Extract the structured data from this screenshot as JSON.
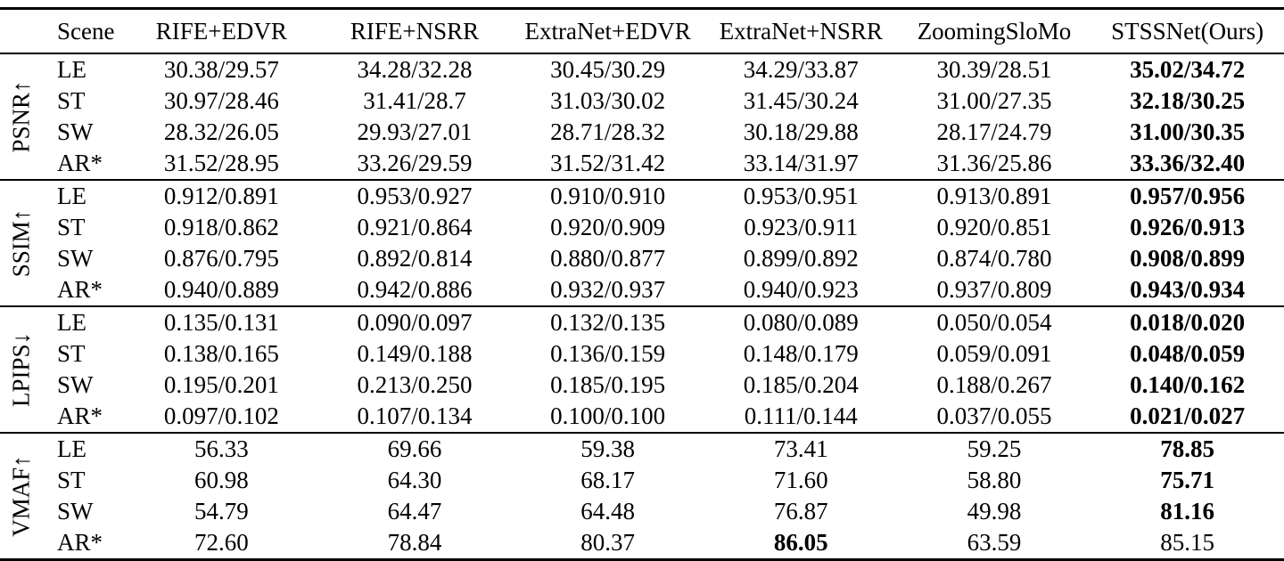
{
  "table": {
    "columns": [
      "Scene",
      "RIFE+EDVR",
      "RIFE+NSRR",
      "ExtraNet+EDVR",
      "ExtraNet+NSRR",
      "ZoomingSloMo",
      "STSSNet(Ours)"
    ],
    "groups": [
      {
        "metric": "PSNR↑",
        "rows": [
          {
            "scene": "LE",
            "values": [
              "30.38/29.57",
              "34.28/32.28",
              "30.45/30.29",
              "34.29/33.87",
              "30.39/28.51",
              "35.02/34.72"
            ],
            "bold": [
              5
            ]
          },
          {
            "scene": "ST",
            "values": [
              "30.97/28.46",
              "31.41/28.7",
              "31.03/30.02",
              "31.45/30.24",
              "31.00/27.35",
              "32.18/30.25"
            ],
            "bold": [
              5
            ]
          },
          {
            "scene": "SW",
            "values": [
              "28.32/26.05",
              "29.93/27.01",
              "28.71/28.32",
              "30.18/29.88",
              "28.17/24.79",
              "31.00/30.35"
            ],
            "bold": [
              5
            ]
          },
          {
            "scene": "AR*",
            "values": [
              "31.52/28.95",
              "33.26/29.59",
              "31.52/31.42",
              "33.14/31.97",
              "31.36/25.86",
              "33.36/32.40"
            ],
            "bold": [
              5
            ]
          }
        ]
      },
      {
        "metric": "SSIM↑",
        "rows": [
          {
            "scene": "LE",
            "values": [
              "0.912/0.891",
              "0.953/0.927",
              "0.910/0.910",
              "0.953/0.951",
              "0.913/0.891",
              "0.957/0.956"
            ],
            "bold": [
              5
            ]
          },
          {
            "scene": "ST",
            "values": [
              "0.918/0.862",
              "0.921/0.864",
              "0.920/0.909",
              "0.923/0.911",
              "0.920/0.851",
              "0.926/0.913"
            ],
            "bold": [
              5
            ]
          },
          {
            "scene": "SW",
            "values": [
              "0.876/0.795",
              "0.892/0.814",
              "0.880/0.877",
              "0.899/0.892",
              "0.874/0.780",
              "0.908/0.899"
            ],
            "bold": [
              5
            ]
          },
          {
            "scene": "AR*",
            "values": [
              "0.940/0.889",
              "0.942/0.886",
              "0.932/0.937",
              "0.940/0.923",
              "0.937/0.809",
              "0.943/0.934"
            ],
            "bold": [
              5
            ]
          }
        ]
      },
      {
        "metric": "LPIPS↓",
        "rows": [
          {
            "scene": "LE",
            "values": [
              "0.135/0.131",
              "0.090/0.097",
              "0.132/0.135",
              "0.080/0.089",
              "0.050/0.054",
              "0.018/0.020"
            ],
            "bold": [
              5
            ]
          },
          {
            "scene": "ST",
            "values": [
              "0.138/0.165",
              "0.149/0.188",
              "0.136/0.159",
              "0.148/0.179",
              "0.059/0.091",
              "0.048/0.059"
            ],
            "bold": [
              5
            ]
          },
          {
            "scene": "SW",
            "values": [
              "0.195/0.201",
              "0.213/0.250",
              "0.185/0.195",
              "0.185/0.204",
              "0.188/0.267",
              "0.140/0.162"
            ],
            "bold": [
              5
            ]
          },
          {
            "scene": "AR*",
            "values": [
              "0.097/0.102",
              "0.107/0.134",
              "0.100/0.100",
              "0.111/0.144",
              "0.037/0.055",
              "0.021/0.027"
            ],
            "bold": [
              5
            ]
          }
        ]
      },
      {
        "metric": "VMAF↑",
        "rows": [
          {
            "scene": "LE",
            "values": [
              "56.33",
              "69.66",
              "59.38",
              "73.41",
              "59.25",
              "78.85"
            ],
            "bold": [
              5
            ]
          },
          {
            "scene": "ST",
            "values": [
              "60.98",
              "64.30",
              "68.17",
              "71.60",
              "58.80",
              "75.71"
            ],
            "bold": [
              5
            ]
          },
          {
            "scene": "SW",
            "values": [
              "54.79",
              "64.47",
              "64.48",
              "76.87",
              "49.98",
              "81.16"
            ],
            "bold": [
              5
            ]
          },
          {
            "scene": "AR*",
            "values": [
              "72.60",
              "78.84",
              "80.37",
              "86.05",
              "63.59",
              "85.15"
            ],
            "bold": [
              3
            ]
          }
        ]
      }
    ]
  }
}
